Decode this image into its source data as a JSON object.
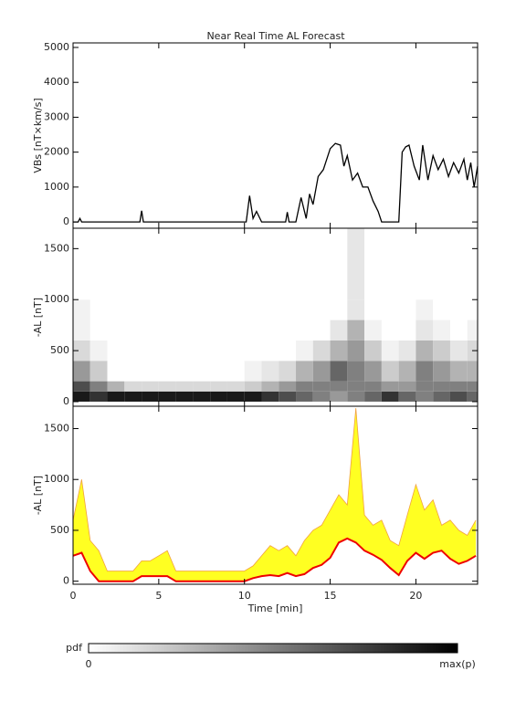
{
  "chart_data": [
    {
      "type": "line",
      "title": "Near Real Time AL Forecast",
      "y_label": "VBs [nT×km/s]",
      "x": [
        0,
        0.3,
        0.4,
        0.5,
        3.9,
        4.0,
        4.1,
        10.1,
        10.3,
        10.5,
        10.7,
        11,
        12.4,
        12.5,
        12.6,
        13,
        13.3,
        13.6,
        13.8,
        14,
        14.3,
        14.6,
        15,
        15.3,
        15.6,
        15.8,
        16,
        16.3,
        16.6,
        16.9,
        17.2,
        17.5,
        17.8,
        18,
        18.3,
        18.6,
        18.8,
        19,
        19.2,
        19.4,
        19.6,
        19.9,
        20.2,
        20.4,
        20.7,
        21,
        21.3,
        21.6,
        21.9,
        22.2,
        22.5,
        22.8,
        23,
        23.2,
        23.4,
        23.6
      ],
      "values": [
        0,
        0,
        100,
        0,
        0,
        320,
        0,
        0,
        750,
        100,
        300,
        0,
        0,
        280,
        0,
        0,
        700,
        100,
        800,
        500,
        1300,
        1500,
        2100,
        2250,
        2200,
        1600,
        1900,
        1200,
        1400,
        1000,
        1000,
        600,
        300,
        0,
        0,
        0,
        0,
        0,
        2000,
        2150,
        2200,
        1600,
        1200,
        2200,
        1200,
        1900,
        1500,
        1800,
        1300,
        1700,
        1400,
        1800,
        1200,
        1700,
        1000,
        1600
      ],
      "color": "#000000",
      "xlim": [
        0,
        23.6
      ],
      "xticks": [
        0,
        5,
        10,
        15,
        20
      ],
      "ylim": [
        -180,
        5130
      ],
      "yticks": [
        0,
        1000,
        2000,
        3000,
        4000,
        5000
      ]
    },
    {
      "type": "heatmap",
      "y_label": "-AL [nT]",
      "xbins": [
        0,
        1,
        2,
        3,
        4,
        5,
        6,
        7,
        8,
        9,
        10,
        11,
        12,
        13,
        14,
        15,
        16,
        17,
        18,
        19,
        20,
        21,
        22,
        23,
        23.6
      ],
      "ybins": [
        0,
        100,
        200,
        400,
        600,
        800,
        1000,
        1700
      ],
      "values": [
        [
          0.9,
          0.7,
          0.4,
          0.15,
          0.05,
          0.05,
          0
        ],
        [
          0.8,
          0.5,
          0.2,
          0.05,
          0,
          0,
          0
        ],
        [
          0.9,
          0.3,
          0,
          0,
          0,
          0,
          0
        ],
        [
          0.9,
          0.15,
          0,
          0,
          0,
          0,
          0
        ],
        [
          0.9,
          0.15,
          0,
          0,
          0,
          0,
          0
        ],
        [
          0.9,
          0.15,
          0,
          0,
          0,
          0,
          0
        ],
        [
          0.9,
          0.15,
          0,
          0,
          0,
          0,
          0
        ],
        [
          0.9,
          0.15,
          0,
          0,
          0,
          0,
          0
        ],
        [
          0.9,
          0.15,
          0,
          0,
          0,
          0,
          0
        ],
        [
          0.9,
          0.15,
          0,
          0,
          0,
          0,
          0
        ],
        [
          0.9,
          0.2,
          0.05,
          0,
          0,
          0,
          0
        ],
        [
          0.8,
          0.3,
          0.1,
          0,
          0,
          0,
          0
        ],
        [
          0.7,
          0.4,
          0.15,
          0,
          0,
          0,
          0
        ],
        [
          0.6,
          0.5,
          0.3,
          0.05,
          0,
          0,
          0
        ],
        [
          0.5,
          0.5,
          0.4,
          0.15,
          0,
          0,
          0
        ],
        [
          0.4,
          0.5,
          0.6,
          0.3,
          0.1,
          0,
          0
        ],
        [
          0.5,
          0.5,
          0.5,
          0.4,
          0.3,
          0.1,
          0.1
        ],
        [
          0.6,
          0.5,
          0.4,
          0.2,
          0.05,
          0,
          0
        ],
        [
          0.8,
          0.4,
          0.2,
          0.05,
          0,
          0,
          0
        ],
        [
          0.6,
          0.4,
          0.3,
          0.1,
          0,
          0,
          0
        ],
        [
          0.5,
          0.5,
          0.5,
          0.3,
          0.1,
          0.05,
          0
        ],
        [
          0.6,
          0.5,
          0.4,
          0.2,
          0.05,
          0,
          0
        ],
        [
          0.7,
          0.5,
          0.3,
          0.1,
          0,
          0,
          0
        ],
        [
          0.6,
          0.5,
          0.3,
          0.15,
          0.05,
          0,
          0
        ]
      ],
      "xlim": [
        0,
        23.6
      ],
      "xticks": [
        0,
        5,
        10,
        15,
        20
      ],
      "ylim": [
        -45,
        1700
      ],
      "yticks": [
        0,
        500,
        1000,
        1500
      ]
    },
    {
      "type": "band",
      "y_label": "-AL [nT]",
      "x_label": "Time [min]",
      "x": [
        0,
        0.5,
        1,
        1.5,
        2,
        2.5,
        3,
        3.5,
        4,
        4.5,
        5,
        5.5,
        6,
        6.5,
        7,
        7.5,
        8,
        8.5,
        9,
        9.5,
        10,
        10.5,
        11,
        11.5,
        12,
        12.5,
        13,
        13.5,
        14,
        14.5,
        15,
        15.5,
        16,
        16.5,
        17,
        17.5,
        18,
        18.5,
        19,
        19.5,
        20,
        20.5,
        21,
        21.5,
        22,
        22.5,
        23,
        23.5
      ],
      "upper": [
        600,
        1000,
        400,
        300,
        100,
        100,
        100,
        100,
        200,
        200,
        250,
        300,
        100,
        100,
        100,
        100,
        100,
        100,
        100,
        100,
        100,
        150,
        250,
        350,
        300,
        350,
        250,
        400,
        500,
        550,
        700,
        850,
        750,
        1700,
        650,
        550,
        600,
        400,
        350,
        650,
        950,
        700,
        800,
        550,
        600,
        500,
        450,
        600
      ],
      "values": [
        250,
        280,
        100,
        0,
        0,
        0,
        0,
        0,
        50,
        50,
        50,
        50,
        0,
        0,
        0,
        0,
        0,
        0,
        0,
        0,
        0,
        30,
        50,
        60,
        50,
        80,
        50,
        70,
        130,
        160,
        230,
        380,
        420,
        380,
        300,
        260,
        210,
        130,
        60,
        200,
        280,
        220,
        280,
        300,
        220,
        170,
        200,
        250
      ],
      "color": "#ee0000",
      "band_color": "#ffff22",
      "edge_color": "#f0a040",
      "xlim": [
        0,
        23.6
      ],
      "xticks": [
        0,
        5,
        10,
        15,
        20
      ],
      "ylim": [
        -30,
        1720
      ],
      "yticks": [
        0,
        500,
        1000,
        1500
      ]
    }
  ],
  "colorbar": {
    "label": "pdf",
    "min_label": "0",
    "max_label": "max(p)"
  }
}
